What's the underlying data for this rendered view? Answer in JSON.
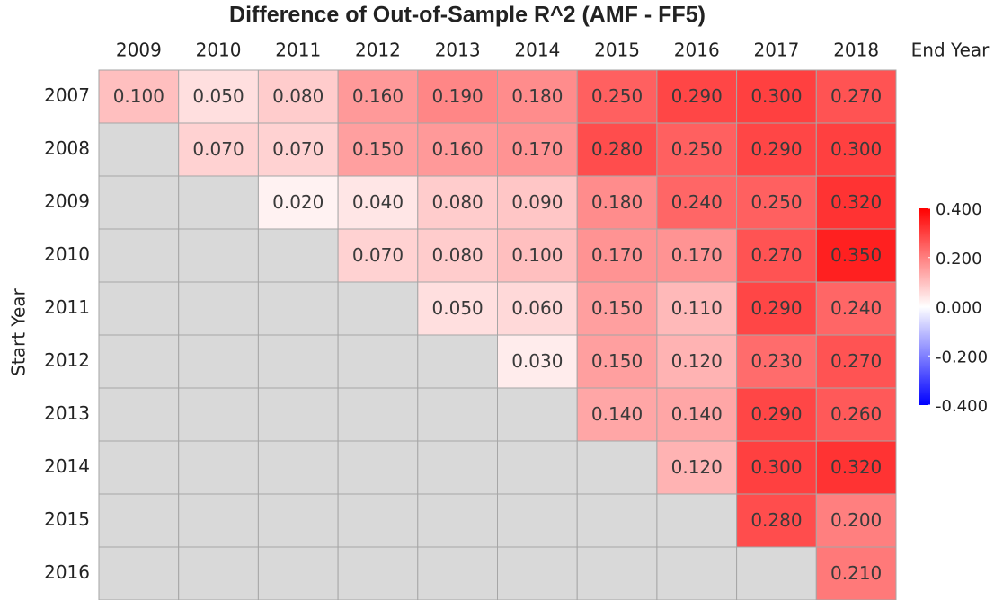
{
  "chart_data": {
    "type": "heatmap",
    "title": "Difference of Out-of-Sample R^2 (AMF - FF5)",
    "x_label": "End Year",
    "y_label": "Start Year",
    "x_categories": [
      "2009",
      "2010",
      "2011",
      "2012",
      "2013",
      "2014",
      "2015",
      "2016",
      "2017",
      "2018"
    ],
    "y_categories": [
      "2007",
      "2008",
      "2009",
      "2010",
      "2011",
      "2012",
      "2013",
      "2014",
      "2015",
      "2016"
    ],
    "z": [
      [
        0.1,
        0.05,
        0.08,
        0.16,
        0.19,
        0.18,
        0.25,
        0.29,
        0.3,
        0.27
      ],
      [
        null,
        0.07,
        0.07,
        0.15,
        0.16,
        0.17,
        0.28,
        0.25,
        0.29,
        0.3
      ],
      [
        null,
        null,
        0.02,
        0.04,
        0.08,
        0.09,
        0.18,
        0.24,
        0.25,
        0.32
      ],
      [
        null,
        null,
        null,
        0.07,
        0.08,
        0.1,
        0.17,
        0.17,
        0.27,
        0.35
      ],
      [
        null,
        null,
        null,
        null,
        0.05,
        0.06,
        0.15,
        0.11,
        0.29,
        0.24
      ],
      [
        null,
        null,
        null,
        null,
        null,
        0.03,
        0.15,
        0.12,
        0.23,
        0.27
      ],
      [
        null,
        null,
        null,
        null,
        null,
        null,
        0.14,
        0.14,
        0.29,
        0.26
      ],
      [
        null,
        null,
        null,
        null,
        null,
        null,
        null,
        0.12,
        0.3,
        0.32
      ],
      [
        null,
        null,
        null,
        null,
        null,
        null,
        null,
        null,
        0.28,
        0.2
      ],
      [
        null,
        null,
        null,
        null,
        null,
        null,
        null,
        null,
        null,
        0.21
      ]
    ],
    "value_labels": [
      [
        "0.100",
        "0.050",
        "0.080",
        "0.160",
        "0.190",
        "0.180",
        "0.250",
        "0.290",
        "0.300",
        "0.270"
      ],
      [
        null,
        "0.070",
        "0.070",
        "0.150",
        "0.160",
        "0.170",
        "0.280",
        "0.250",
        "0.290",
        "0.300"
      ],
      [
        null,
        null,
        "0.020",
        "0.040",
        "0.080",
        "0.090",
        "0.180",
        "0.240",
        "0.250",
        "0.320"
      ],
      [
        null,
        null,
        null,
        "0.070",
        "0.080",
        "0.100",
        "0.170",
        "0.170",
        "0.270",
        "0.350"
      ],
      [
        null,
        null,
        null,
        null,
        "0.050",
        "0.060",
        "0.150",
        "0.110",
        "0.290",
        "0.240"
      ],
      [
        null,
        null,
        null,
        null,
        null,
        "0.030",
        "0.150",
        "0.120",
        "0.230",
        "0.270"
      ],
      [
        null,
        null,
        null,
        null,
        null,
        null,
        "0.140",
        "0.140",
        "0.290",
        "0.260"
      ],
      [
        null,
        null,
        null,
        null,
        null,
        null,
        null,
        "0.120",
        "0.300",
        "0.320"
      ],
      [
        null,
        null,
        null,
        null,
        null,
        null,
        null,
        null,
        "0.280",
        "0.200"
      ],
      [
        null,
        null,
        null,
        null,
        null,
        null,
        null,
        null,
        null,
        "0.210"
      ]
    ],
    "zlim": [
      -0.4,
      0.4
    ],
    "colorscale": [
      "#0000ff",
      "#ffffff",
      "#ff0000"
    ],
    "missing_color": "#d9d9d9",
    "zticks": [
      {
        "value": 0.4,
        "label": "0.400"
      },
      {
        "value": 0.2,
        "label": "0.200"
      },
      {
        "value": 0,
        "label": "0.000"
      },
      {
        "value": -0.2,
        "label": "-0.200"
      },
      {
        "value": -0.4,
        "label": "-0.400"
      }
    ]
  }
}
